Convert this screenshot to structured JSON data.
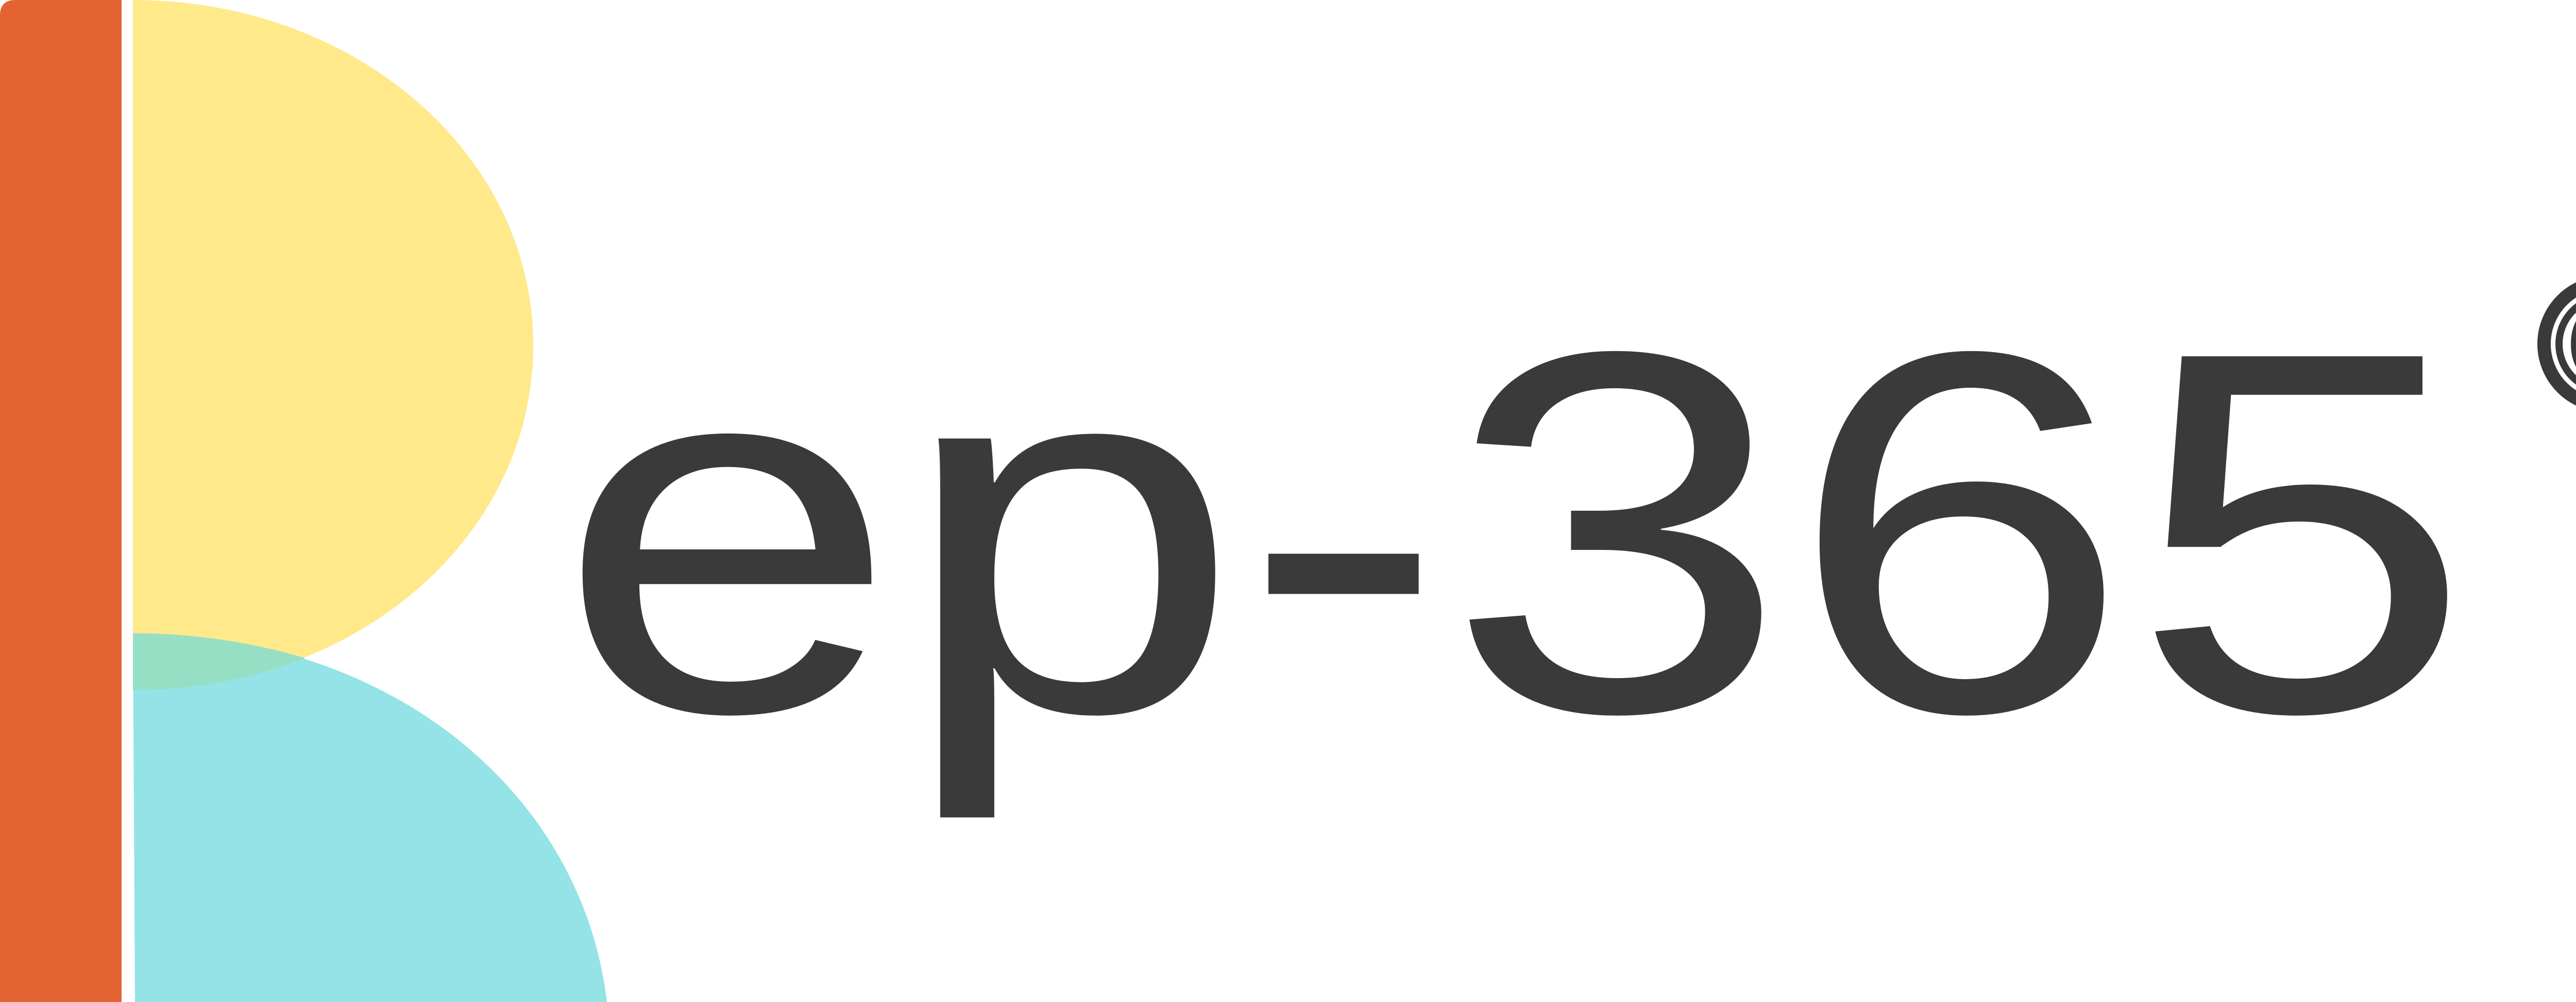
{
  "logo": {
    "wordmark": "ep-365",
    "trademark_symbol": "©",
    "colors": {
      "bar": "#E36333",
      "upper_bowl": "#FFE98A",
      "lower_leg": "#94E3E7",
      "overlap": "#96DFC4",
      "text": "#3A3A3A"
    }
  }
}
